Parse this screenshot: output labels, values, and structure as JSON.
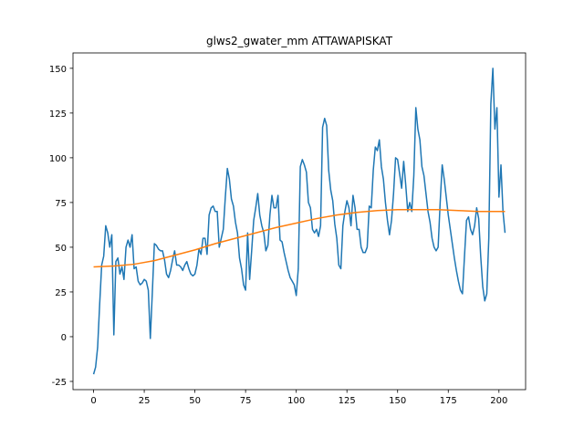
{
  "chart_data": {
    "type": "line",
    "title": "glws2_gwater_mm ATTAWAPISKAT",
    "xlim": [
      -10.15,
      213.15
    ],
    "ylim": [
      -29.6,
      158.6
    ],
    "xticks": [
      0,
      25,
      50,
      75,
      100,
      125,
      150,
      175,
      200
    ],
    "yticks": [
      -25,
      0,
      25,
      50,
      75,
      100,
      125,
      150
    ],
    "grid": false,
    "series": [
      {
        "color": "#1f77b4",
        "x": [
          0,
          1,
          2,
          3,
          4,
          5,
          6,
          7,
          8,
          9,
          10,
          11,
          12,
          13,
          14,
          15,
          16,
          17,
          18,
          19,
          20,
          21,
          22,
          23,
          24,
          25,
          26,
          27,
          28,
          29,
          30,
          31,
          32,
          33,
          34,
          35,
          36,
          37,
          38,
          39,
          40,
          41,
          42,
          43,
          44,
          45,
          46,
          47,
          48,
          49,
          50,
          51,
          52,
          53,
          54,
          55,
          56,
          57,
          58,
          59,
          60,
          61,
          62,
          63,
          64,
          65,
          66,
          67,
          68,
          69,
          70,
          71,
          72,
          73,
          74,
          75,
          76,
          77,
          78,
          79,
          80,
          81,
          82,
          83,
          84,
          85,
          86,
          87,
          88,
          89,
          90,
          91,
          92,
          93,
          94,
          95,
          96,
          97,
          98,
          99,
          100,
          101,
          102,
          103,
          104,
          105,
          106,
          107,
          108,
          109,
          110,
          111,
          112,
          113,
          114,
          115,
          116,
          117,
          118,
          119,
          120,
          121,
          122,
          123,
          124,
          125,
          126,
          127,
          128,
          129,
          130,
          131,
          132,
          133,
          134,
          135,
          136,
          137,
          138,
          139,
          140,
          141,
          142,
          143,
          144,
          145,
          146,
          147,
          148,
          149,
          150,
          151,
          152,
          153,
          154,
          155,
          156,
          157,
          158,
          159,
          160,
          161,
          162,
          163,
          164,
          165,
          166,
          167,
          168,
          169,
          170,
          171,
          172,
          173,
          174,
          175,
          176,
          177,
          178,
          179,
          180,
          181,
          182,
          183,
          184,
          185,
          186,
          187,
          188,
          189,
          190,
          191,
          192,
          193,
          194,
          195,
          196,
          197,
          198,
          199,
          200,
          201,
          202,
          203
        ],
        "values": [
          -21,
          -17,
          -6,
          18,
          40,
          45,
          62,
          58,
          50,
          57,
          1,
          42,
          44,
          35,
          39,
          32,
          50,
          54,
          50,
          57,
          38,
          39,
          31,
          29,
          30,
          32,
          31,
          26,
          -1,
          25,
          52,
          51,
          49,
          48,
          48,
          43,
          35,
          33,
          37,
          43,
          48,
          40,
          40,
          39,
          37,
          40,
          42,
          38,
          35,
          34,
          35,
          40,
          49,
          46,
          55,
          55,
          46,
          68,
          72,
          73,
          70,
          70,
          50,
          55,
          60,
          78,
          94,
          88,
          77,
          73,
          64,
          58,
          44,
          38,
          29,
          26,
          58,
          32,
          48,
          65,
          72,
          80,
          68,
          62,
          58,
          48,
          51,
          68,
          79,
          72,
          72,
          79,
          54,
          53,
          47,
          42,
          37,
          33,
          31,
          29,
          23,
          38,
          95,
          99,
          96,
          92,
          75,
          72,
          60,
          58,
          60,
          56,
          62,
          117,
          122,
          118,
          93,
          82,
          76,
          63,
          55,
          40,
          38,
          62,
          70,
          76,
          72,
          62,
          79,
          72,
          60,
          60,
          50,
          47,
          47,
          50,
          73,
          72,
          93,
          106,
          104,
          110,
          95,
          88,
          75,
          65,
          57,
          65,
          80,
          100,
          99,
          91,
          83,
          98,
          85,
          70,
          75,
          70,
          90,
          128,
          116,
          110,
          95,
          90,
          80,
          70,
          64,
          55,
          50,
          48,
          50,
          75,
          96,
          88,
          78,
          68,
          60,
          52,
          44,
          37,
          31,
          26,
          24,
          45,
          65,
          67,
          60,
          57,
          62,
          72,
          66,
          45,
          28,
          20,
          24,
          55,
          130,
          150,
          116,
          128,
          78,
          96,
          70,
          58
        ]
      },
      {
        "color": "#ff7f0e",
        "x": [
          0,
          10,
          20,
          30,
          40,
          50,
          60,
          70,
          80,
          90,
          100,
          110,
          120,
          130,
          140,
          150,
          160,
          170,
          180,
          190,
          203
        ],
        "values": [
          39,
          39.5,
          40.5,
          42.5,
          45.5,
          48.5,
          52,
          55,
          58,
          61,
          63.5,
          66,
          68,
          69.5,
          70.5,
          71,
          71,
          71,
          70.5,
          70,
          70
        ]
      }
    ]
  }
}
